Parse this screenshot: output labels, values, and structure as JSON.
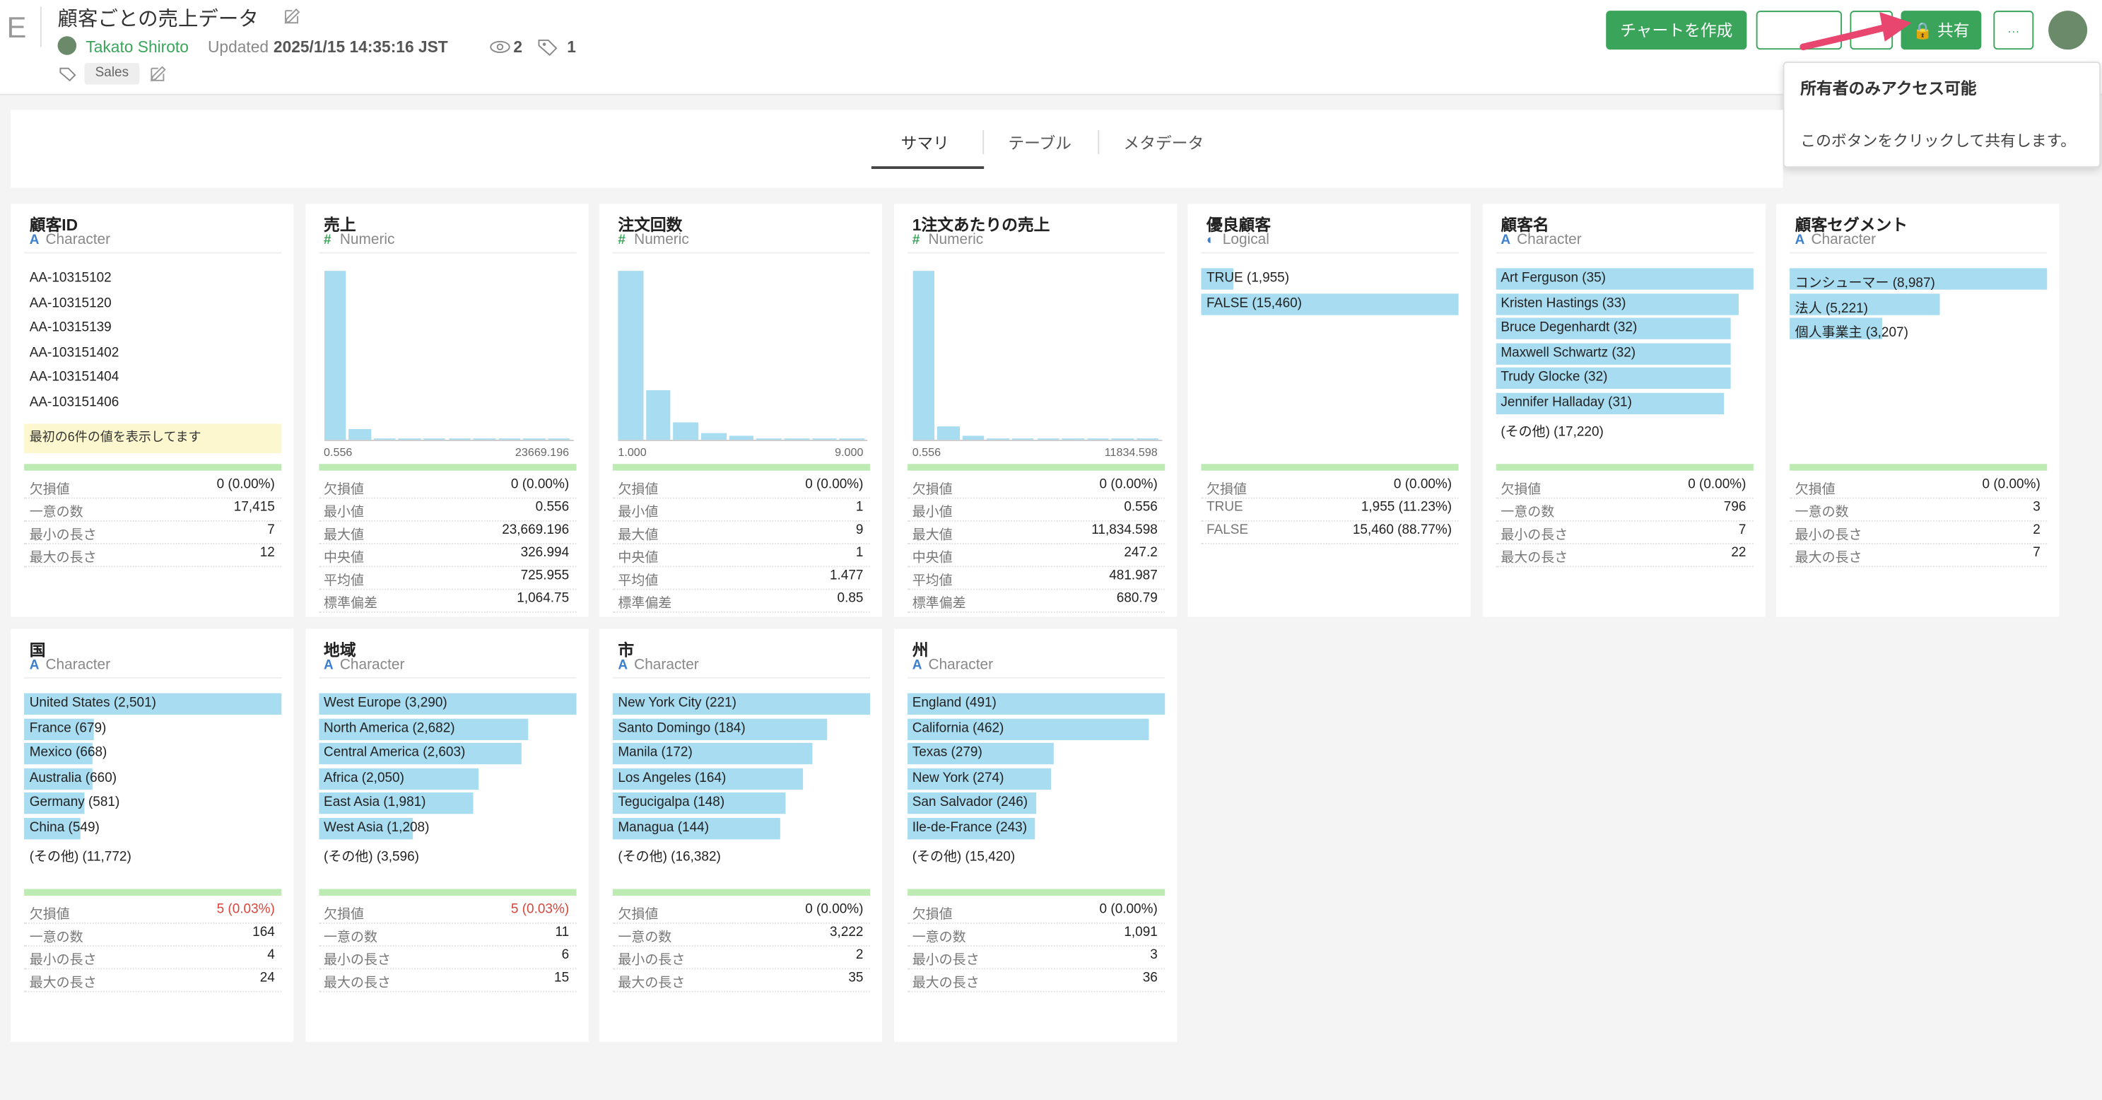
{
  "header": {
    "logo": "E",
    "title": "顧客ごとの売上データ",
    "user": "Takato Shiroto",
    "updated_label": "Updated",
    "updated": "2025/1/15 14:35:16 JST",
    "views": "2",
    "tags_count": "1",
    "tag": "Sales"
  },
  "buttons": {
    "create_chart": "チャートを作成",
    "share": "共有",
    "more": "···"
  },
  "tooltip": {
    "title": "所有者のみアクセス可能",
    "body": "このボタンをクリックして共有します。"
  },
  "tabs": [
    "サマリ",
    "テーブル",
    "メタデータ"
  ],
  "cards": [
    {
      "title": "顧客ID",
      "icon": "A",
      "kind": "Character",
      "view": "list",
      "items": [
        "AA-10315102",
        "AA-10315120",
        "AA-10315139",
        "AA-103151402",
        "AA-103151404",
        "AA-103151406"
      ],
      "note": "最初の6件の値を表示してます",
      "stats": [
        {
          "k": "欠損値",
          "v": "0 (0.00%)"
        },
        {
          "k": "一意の数",
          "v": "17,415"
        },
        {
          "k": "最小の長さ",
          "v": "7"
        },
        {
          "k": "最大の長さ",
          "v": "12"
        }
      ]
    },
    {
      "title": "売上",
      "icon": "#",
      "kind": "Numeric",
      "view": "hist",
      "hist": [
        100,
        6,
        1,
        1,
        1,
        1,
        1,
        1,
        1,
        1
      ],
      "hist_min": "0.556",
      "hist_max": "23669.196",
      "stats": [
        {
          "k": "欠損値",
          "v": "0 (0.00%)"
        },
        {
          "k": "最小値",
          "v": "0.556"
        },
        {
          "k": "最大値",
          "v": "23,669.196"
        },
        {
          "k": "中央値",
          "v": "326.994"
        },
        {
          "k": "平均値",
          "v": "725.955"
        },
        {
          "k": "標準偏差",
          "v": "1,064.75"
        }
      ]
    },
    {
      "title": "注文回数",
      "icon": "#",
      "kind": "Numeric",
      "view": "hist",
      "hist": [
        100,
        29,
        10,
        4,
        2,
        1,
        1,
        1,
        1
      ],
      "hist_min": "1.000",
      "hist_max": "9.000",
      "stats": [
        {
          "k": "欠損値",
          "v": "0 (0.00%)"
        },
        {
          "k": "最小値",
          "v": "1"
        },
        {
          "k": "最大値",
          "v": "9"
        },
        {
          "k": "中央値",
          "v": "1"
        },
        {
          "k": "平均値",
          "v": "1.477"
        },
        {
          "k": "標準偏差",
          "v": "0.85"
        }
      ]
    },
    {
      "title": "1注文あたりの売上",
      "icon": "#",
      "kind": "Numeric",
      "view": "hist",
      "hist": [
        100,
        8,
        2,
        1,
        1,
        1,
        1,
        1,
        1,
        1
      ],
      "hist_min": "0.556",
      "hist_max": "11834.598",
      "stats": [
        {
          "k": "欠損値",
          "v": "0 (0.00%)"
        },
        {
          "k": "最小値",
          "v": "0.556"
        },
        {
          "k": "最大値",
          "v": "11,834.598"
        },
        {
          "k": "中央値",
          "v": "247.2"
        },
        {
          "k": "平均値",
          "v": "481.987"
        },
        {
          "k": "標準偏差",
          "v": "680.79"
        }
      ]
    },
    {
      "title": "優良顧客",
      "icon": "◐",
      "kind": "Logical",
      "view": "bars",
      "items": [
        {
          "label": "TRUE (1,955)",
          "count": 1955
        },
        {
          "label": "FALSE (15,460)",
          "count": 15460
        }
      ],
      "stats": [
        {
          "k": "欠損値",
          "v": "0 (0.00%)"
        },
        {
          "k": "TRUE",
          "v": "1,955 (11.23%)"
        },
        {
          "k": "FALSE",
          "v": "15,460 (88.77%)"
        }
      ]
    },
    {
      "title": "顧客名",
      "icon": "A",
      "kind": "Character",
      "view": "bars",
      "items": [
        {
          "label": "Art Ferguson (35)",
          "count": 35
        },
        {
          "label": "Kristen Hastings (33)",
          "count": 33
        },
        {
          "label": "Bruce Degenhardt (32)",
          "count": 32
        },
        {
          "label": "Maxwell Schwartz (32)",
          "count": 32
        },
        {
          "label": "Trudy Glocke (32)",
          "count": 32
        },
        {
          "label": "Jennifer Halladay (31)",
          "count": 31
        },
        {
          "label": "(その他) (17,220)"
        }
      ],
      "stats": [
        {
          "k": "欠損値",
          "v": "0 (0.00%)"
        },
        {
          "k": "一意の数",
          "v": "796"
        },
        {
          "k": "最小の長さ",
          "v": "7"
        },
        {
          "k": "最大の長さ",
          "v": "22"
        }
      ]
    },
    {
      "title": "顧客セグメント",
      "icon": "A",
      "kind": "Character",
      "view": "bars",
      "items": [
        {
          "label": "コンシューマー (8,987)",
          "count": 8987
        },
        {
          "label": "法人 (5,221)",
          "count": 5221
        },
        {
          "label": "個人事業主 (3,207)",
          "count": 3207
        }
      ],
      "stats": [
        {
          "k": "欠損値",
          "v": "0 (0.00%)"
        },
        {
          "k": "一意の数",
          "v": "3"
        },
        {
          "k": "最小の長さ",
          "v": "2"
        },
        {
          "k": "最大の長さ",
          "v": "7"
        }
      ]
    },
    {
      "title": "国",
      "icon": "A",
      "kind": "Character",
      "view": "bars",
      "items": [
        {
          "label": "United States (2,501)",
          "count": 2501
        },
        {
          "label": "France (679)",
          "count": 679
        },
        {
          "label": "Mexico (668)",
          "count": 668
        },
        {
          "label": "Australia (660)",
          "count": 660
        },
        {
          "label": "Germany (581)",
          "count": 581
        },
        {
          "label": "China (549)",
          "count": 549
        },
        {
          "label": "(その他) (11,772)"
        }
      ],
      "stats": [
        {
          "k": "欠損値",
          "v": "5 (0.03%)",
          "alert": true
        },
        {
          "k": "一意の数",
          "v": "164"
        },
        {
          "k": "最小の長さ",
          "v": "4"
        },
        {
          "k": "最大の長さ",
          "v": "24"
        }
      ]
    },
    {
      "title": "地域",
      "icon": "A",
      "kind": "Character",
      "view": "bars",
      "items": [
        {
          "label": "West Europe (3,290)",
          "count": 3290
        },
        {
          "label": "North America (2,682)",
          "count": 2682
        },
        {
          "label": "Central America (2,603)",
          "count": 2603
        },
        {
          "label": "Africa (2,050)",
          "count": 2050
        },
        {
          "label": "East Asia (1,981)",
          "count": 1981
        },
        {
          "label": "West Asia (1,208)",
          "count": 1208
        },
        {
          "label": "(その他) (3,596)"
        }
      ],
      "stats": [
        {
          "k": "欠損値",
          "v": "5 (0.03%)",
          "alert": true
        },
        {
          "k": "一意の数",
          "v": "11"
        },
        {
          "k": "最小の長さ",
          "v": "6"
        },
        {
          "k": "最大の長さ",
          "v": "15"
        }
      ]
    },
    {
      "title": "市",
      "icon": "A",
      "kind": "Character",
      "view": "bars",
      "items": [
        {
          "label": "New York City (221)",
          "count": 221
        },
        {
          "label": "Santo Domingo (184)",
          "count": 184
        },
        {
          "label": "Manila (172)",
          "count": 172
        },
        {
          "label": "Los Angeles (164)",
          "count": 164
        },
        {
          "label": "Tegucigalpa (148)",
          "count": 148
        },
        {
          "label": "Managua (144)",
          "count": 144
        },
        {
          "label": "(その他) (16,382)"
        }
      ],
      "stats": [
        {
          "k": "欠損値",
          "v": "0 (0.00%)"
        },
        {
          "k": "一意の数",
          "v": "3,222"
        },
        {
          "k": "最小の長さ",
          "v": "2"
        },
        {
          "k": "最大の長さ",
          "v": "35"
        }
      ]
    },
    {
      "title": "州",
      "icon": "A",
      "kind": "Character",
      "view": "bars",
      "items": [
        {
          "label": "England (491)",
          "count": 491
        },
        {
          "label": "California (462)",
          "count": 462
        },
        {
          "label": "Texas (279)",
          "count": 279
        },
        {
          "label": "New York (274)",
          "count": 274
        },
        {
          "label": "San Salvador (246)",
          "count": 246
        },
        {
          "label": "Ile-de-France (243)",
          "count": 243
        },
        {
          "label": "(その他) (15,420)"
        }
      ],
      "stats": [
        {
          "k": "欠損値",
          "v": "0 (0.00%)"
        },
        {
          "k": "一意の数",
          "v": "1,091"
        },
        {
          "k": "最小の長さ",
          "v": "3"
        },
        {
          "k": "最大の長さ",
          "v": "36"
        }
      ]
    }
  ]
}
